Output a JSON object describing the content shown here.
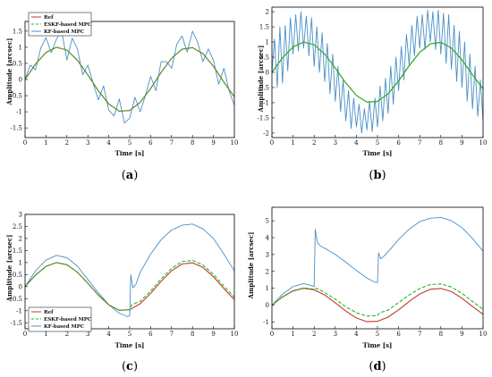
{
  "figure": {
    "panels": [
      {
        "caption_open": "(",
        "caption_letter": "a",
        "caption_close": ")"
      },
      {
        "caption_open": "(",
        "caption_letter": "b",
        "caption_close": ")"
      },
      {
        "caption_open": "(",
        "caption_letter": "c",
        "caption_close": ")"
      },
      {
        "caption_open": "(",
        "caption_letter": "d",
        "caption_close": ")"
      }
    ]
  },
  "colors": {
    "ref": "#c0392b",
    "eskf": "#22bb22",
    "kf": "#4a90c8",
    "axis": "#000000"
  },
  "chart_data": [
    {
      "type": "line",
      "xlabel": "Time [s]",
      "ylabel": "Amplitude [arcsec]",
      "xlim": [
        0,
        10
      ],
      "ylim": [
        -1.8,
        1.8
      ],
      "xticks": [
        "0",
        "1",
        "2",
        "3",
        "4",
        "5",
        "6",
        "7",
        "8",
        "9",
        "10"
      ],
      "yticks": [
        "1.5",
        "1",
        "0.5",
        "0",
        "-0.5",
        "-1",
        "-1.5"
      ],
      "ytick_values": [
        1.5,
        1,
        0.5,
        0,
        -0.5,
        -1,
        -1.5
      ],
      "legend": [
        "Ref",
        "ESKF-based MPC",
        "KF-based MPC"
      ],
      "legend_position": "top-left",
      "series": [
        {
          "name": "Ref",
          "color_key": "ref",
          "dash": false,
          "x": [
            0,
            0.5,
            1,
            1.5,
            2,
            2.5,
            3,
            3.5,
            4,
            4.5,
            5,
            5.5,
            6,
            6.5,
            7,
            7.5,
            8,
            8.5,
            9,
            9.5,
            10
          ],
          "y": [
            0,
            0.48,
            0.84,
            1.0,
            0.91,
            0.6,
            0.14,
            -0.35,
            -0.76,
            -0.98,
            -0.96,
            -0.71,
            -0.28,
            0.22,
            0.66,
            0.94,
            0.99,
            0.8,
            0.41,
            -0.08,
            -0.54
          ]
        },
        {
          "name": "ESKF-based MPC",
          "color_key": "eskf",
          "dash": true,
          "x": [
            0,
            0.5,
            1,
            1.5,
            2,
            2.5,
            3,
            3.5,
            4,
            4.5,
            5,
            5.5,
            6,
            6.5,
            7,
            7.5,
            8,
            8.5,
            9,
            9.5,
            10
          ],
          "y": [
            0,
            0.48,
            0.84,
            1.0,
            0.91,
            0.6,
            0.14,
            -0.35,
            -0.76,
            -0.98,
            -0.96,
            -0.71,
            -0.28,
            0.22,
            0.66,
            0.94,
            0.99,
            0.8,
            0.41,
            -0.08,
            -0.54
          ]
        },
        {
          "name": "KF-based MPC",
          "color_key": "kf",
          "dash": false,
          "x": [
            0,
            0.25,
            0.5,
            0.75,
            1,
            1.25,
            1.5,
            1.75,
            2,
            2.25,
            2.5,
            2.75,
            3,
            3.25,
            3.5,
            3.75,
            4,
            4.25,
            4.5,
            4.75,
            5,
            5.25,
            5.5,
            5.75,
            6,
            6.25,
            6.5,
            6.75,
            7,
            7.25,
            7.5,
            7.75,
            8,
            8.25,
            8.5,
            8.75,
            9,
            9.25,
            9.5,
            9.75,
            10
          ],
          "y": [
            0,
            0.45,
            0.3,
            0.97,
            1.3,
            0.83,
            1.25,
            1.5,
            0.6,
            1.28,
            0.95,
            0.15,
            0.45,
            -0.1,
            -0.63,
            -0.2,
            -0.95,
            -1.13,
            -0.6,
            -1.35,
            -1.2,
            -0.55,
            -1.0,
            -0.5,
            0.1,
            -0.35,
            0.55,
            0.55,
            0.35,
            1.1,
            1.35,
            0.85,
            1.5,
            1.15,
            0.55,
            0.95,
            0.6,
            -0.15,
            0.35,
            -0.35,
            -0.8
          ]
        }
      ]
    },
    {
      "type": "line",
      "xlabel": "Time [s]",
      "ylabel": "Amplitude [arcsec]",
      "xlim": [
        0,
        10
      ],
      "ylim": [
        -2.15,
        2.15
      ],
      "xticks": [
        "0",
        "1",
        "2",
        "3",
        "4",
        "5",
        "6",
        "7",
        "8",
        "9",
        "10"
      ],
      "yticks": [
        "2",
        "1.5",
        "1",
        "0.5",
        "0",
        "-0.5",
        "-1",
        "-1.5",
        "-2"
      ],
      "ytick_values": [
        2,
        1.5,
        1,
        0.5,
        0,
        -0.5,
        -1,
        -1.5,
        -2
      ],
      "legend": [],
      "series": [
        {
          "name": "Ref",
          "color_key": "ref",
          "dash": false,
          "x": [
            0,
            0.5,
            1,
            1.5,
            2,
            2.5,
            3,
            3.5,
            4,
            4.5,
            5,
            5.5,
            6,
            6.5,
            7,
            7.5,
            8,
            8.5,
            9,
            9.5,
            10
          ],
          "y": [
            0,
            0.48,
            0.84,
            1.0,
            0.91,
            0.6,
            0.14,
            -0.35,
            -0.76,
            -0.98,
            -0.96,
            -0.71,
            -0.28,
            0.22,
            0.66,
            0.94,
            0.99,
            0.8,
            0.41,
            -0.08,
            -0.54
          ]
        },
        {
          "name": "ESKF-based MPC",
          "color_key": "eskf",
          "dash": false,
          "x": [
            0,
            0.5,
            1,
            1.5,
            2,
            2.5,
            3,
            3.5,
            4,
            4.5,
            5,
            5.5,
            6,
            6.5,
            7,
            7.5,
            8,
            8.5,
            9,
            9.5,
            10
          ],
          "y": [
            0,
            0.48,
            0.84,
            1.0,
            0.91,
            0.6,
            0.14,
            -0.35,
            -0.76,
            -0.98,
            -0.96,
            -0.71,
            -0.28,
            0.22,
            0.66,
            0.94,
            0.99,
            0.8,
            0.41,
            -0.08,
            -0.54
          ]
        },
        {
          "name": "KF-based MPC",
          "color_key": "kf",
          "dash": false,
          "x": [
            0,
            0.125,
            0.25,
            0.375,
            0.5,
            0.625,
            0.75,
            0.875,
            1,
            1.125,
            1.25,
            1.375,
            1.5,
            1.625,
            1.75,
            1.875,
            2,
            2.125,
            2.25,
            2.375,
            2.5,
            2.625,
            2.75,
            2.875,
            3,
            3.125,
            3.25,
            3.375,
            3.5,
            3.625,
            3.75,
            3.875,
            4,
            4.125,
            4.25,
            4.375,
            4.5,
            4.625,
            4.75,
            4.875,
            5,
            5.125,
            5.25,
            5.375,
            5.5,
            5.625,
            5.75,
            5.875,
            6,
            6.125,
            6.25,
            6.375,
            6.5,
            6.625,
            6.75,
            6.875,
            7,
            7.125,
            7.25,
            7.375,
            7.5,
            7.625,
            7.75,
            7.875,
            8,
            8.125,
            8.25,
            8.375,
            8.5,
            8.625,
            8.75,
            8.875,
            9,
            9.125,
            9.25,
            9.375,
            9.5,
            9.625,
            9.75,
            9.875,
            10
          ],
          "y": [
            0,
            1.1,
            -0.5,
            1.5,
            -0.35,
            1.55,
            0.05,
            1.8,
            0.6,
            1.9,
            0.7,
            2.0,
            0.8,
            1.85,
            0.55,
            1.8,
            0.2,
            1.5,
            0.0,
            1.3,
            -0.3,
            0.95,
            -0.7,
            0.6,
            -0.95,
            0.2,
            -1.3,
            -0.25,
            -1.6,
            -0.6,
            -1.85,
            -0.85,
            -1.8,
            -1.05,
            -2.0,
            -1.2,
            -1.9,
            -0.95,
            -1.95,
            -0.85,
            -1.8,
            -0.45,
            -1.6,
            -0.2,
            -1.35,
            0.2,
            -1.05,
            0.5,
            -0.6,
            0.85,
            -0.25,
            1.25,
            0.25,
            1.55,
            0.55,
            1.85,
            0.8,
            1.9,
            0.75,
            2.05,
            1.0,
            2.0,
            0.75,
            2.05,
            0.6,
            1.95,
            0.3,
            1.9,
            0.1,
            1.55,
            -0.3,
            1.35,
            -0.5,
            1.0,
            -0.95,
            0.6,
            -1.2,
            0.2,
            -1.45,
            -0.25,
            -1.6
          ]
        }
      ]
    },
    {
      "type": "line",
      "xlabel": "Time [s]",
      "ylabel": "Amplitude [arcsec]",
      "xlim": [
        0,
        10
      ],
      "ylim": [
        -1.75,
        3.0
      ],
      "xticks": [
        "0",
        "1",
        "2",
        "3",
        "4",
        "5",
        "6",
        "7",
        "8",
        "9",
        "10"
      ],
      "yticks": [
        "3",
        "2.5",
        "2",
        "1.5",
        "1",
        "0.5",
        "0",
        "-0.5",
        "-1",
        "-1.5"
      ],
      "ytick_values": [
        3,
        2.5,
        2,
        1.5,
        1,
        0.5,
        0,
        -0.5,
        -1,
        -1.5
      ],
      "legend": [
        "Ref",
        "ESKF-based MPC",
        "KF-based MPC"
      ],
      "legend_position": "bottom-left",
      "series": [
        {
          "name": "Ref",
          "color_key": "ref",
          "dash": false,
          "x": [
            0,
            0.5,
            1,
            1.5,
            2,
            2.5,
            3,
            3.5,
            4,
            4.5,
            5,
            5.5,
            6,
            6.5,
            7,
            7.5,
            8,
            8.5,
            9,
            9.5,
            10
          ],
          "y": [
            0,
            0.48,
            0.84,
            1.0,
            0.91,
            0.6,
            0.14,
            -0.35,
            -0.76,
            -0.98,
            -0.96,
            -0.71,
            -0.28,
            0.22,
            0.66,
            0.94,
            0.99,
            0.8,
            0.41,
            -0.08,
            -0.54
          ]
        },
        {
          "name": "ESKF-based MPC",
          "color_key": "eskf",
          "dash": true,
          "x": [
            0,
            0.5,
            1,
            1.5,
            2,
            2.5,
            3,
            3.5,
            4,
            4.5,
            5,
            5.1,
            5.5,
            6,
            6.5,
            7,
            7.5,
            8,
            8.5,
            9,
            9.5,
            10
          ],
          "y": [
            0,
            0.48,
            0.84,
            1.0,
            0.91,
            0.6,
            0.14,
            -0.35,
            -0.76,
            -0.98,
            -0.96,
            -0.75,
            -0.61,
            -0.18,
            0.32,
            0.76,
            1.04,
            1.09,
            0.9,
            0.51,
            0.02,
            -0.44
          ]
        },
        {
          "name": "KF-based MPC",
          "color_key": "kf",
          "dash": false,
          "x": [
            0,
            0.5,
            1,
            1.5,
            2,
            2.5,
            3,
            3.5,
            4,
            4.5,
            4.9,
            5.0,
            5.05,
            5.15,
            5.3,
            5.5,
            6,
            6.5,
            7,
            7.5,
            8,
            8.5,
            9,
            9.5,
            10
          ],
          "y": [
            0,
            0.65,
            1.1,
            1.3,
            1.2,
            0.85,
            0.3,
            -0.25,
            -0.75,
            -1.1,
            -1.25,
            -1.2,
            0.5,
            -0.05,
            0.1,
            0.6,
            1.35,
            1.95,
            2.35,
            2.55,
            2.6,
            2.4,
            2.0,
            1.35,
            0.65
          ]
        }
      ]
    },
    {
      "type": "line",
      "xlabel": "Time [s]",
      "ylabel": "Amplitude [arcsec]",
      "xlim": [
        0,
        10
      ],
      "ylim": [
        -1.4,
        5.8
      ],
      "xticks": [
        "0",
        "1",
        "2",
        "3",
        "4",
        "5",
        "6",
        "7",
        "8",
        "9",
        "10"
      ],
      "yticks": [
        "5",
        "4",
        "3",
        "2",
        "1",
        "0",
        "-1"
      ],
      "ytick_values": [
        5,
        4,
        3,
        2,
        1,
        0,
        -1
      ],
      "legend": [],
      "series": [
        {
          "name": "Ref",
          "color_key": "ref",
          "dash": false,
          "x": [
            0,
            0.5,
            1,
            1.5,
            2,
            2.5,
            3,
            3.5,
            4,
            4.5,
            5,
            5.5,
            6,
            6.5,
            7,
            7.5,
            8,
            8.5,
            9,
            9.5,
            10
          ],
          "y": [
            0,
            0.48,
            0.84,
            1.0,
            0.91,
            0.6,
            0.14,
            -0.35,
            -0.76,
            -0.98,
            -0.96,
            -0.71,
            -0.28,
            0.22,
            0.66,
            0.94,
            0.99,
            0.8,
            0.41,
            -0.08,
            -0.54
          ]
        },
        {
          "name": "ESKF-based MPC",
          "color_key": "eskf",
          "dash": true,
          "x": [
            0,
            0.5,
            1,
            1.5,
            2,
            2.1,
            2.5,
            3,
            3.5,
            4,
            4.5,
            5,
            5.1,
            5.5,
            6,
            6.5,
            7,
            7.5,
            8,
            8.5,
            9,
            9.5,
            10
          ],
          "y": [
            0,
            0.5,
            0.86,
            1.02,
            0.95,
            1.0,
            0.75,
            0.35,
            -0.1,
            -0.45,
            -0.65,
            -0.62,
            -0.45,
            -0.3,
            0.15,
            0.6,
            0.98,
            1.22,
            1.26,
            1.08,
            0.7,
            0.22,
            -0.25
          ]
        },
        {
          "name": "KF-based MPC",
          "color_key": "kf",
          "dash": false,
          "x": [
            0,
            0.5,
            1,
            1.5,
            1.9,
            2.0,
            2.05,
            2.15,
            2.3,
            2.6,
            3,
            3.5,
            4,
            4.5,
            4.9,
            5.0,
            5.05,
            5.15,
            5.3,
            5.6,
            6,
            6.5,
            7,
            7.5,
            8,
            8.5,
            9,
            9.5,
            10
          ],
          "y": [
            0,
            0.65,
            1.1,
            1.28,
            1.15,
            1.1,
            4.5,
            3.7,
            3.5,
            3.3,
            3.0,
            2.55,
            2.05,
            1.6,
            1.35,
            1.35,
            3.1,
            2.75,
            2.9,
            3.3,
            3.9,
            4.5,
            4.95,
            5.15,
            5.2,
            5.0,
            4.6,
            3.95,
            3.2
          ]
        }
      ]
    }
  ]
}
